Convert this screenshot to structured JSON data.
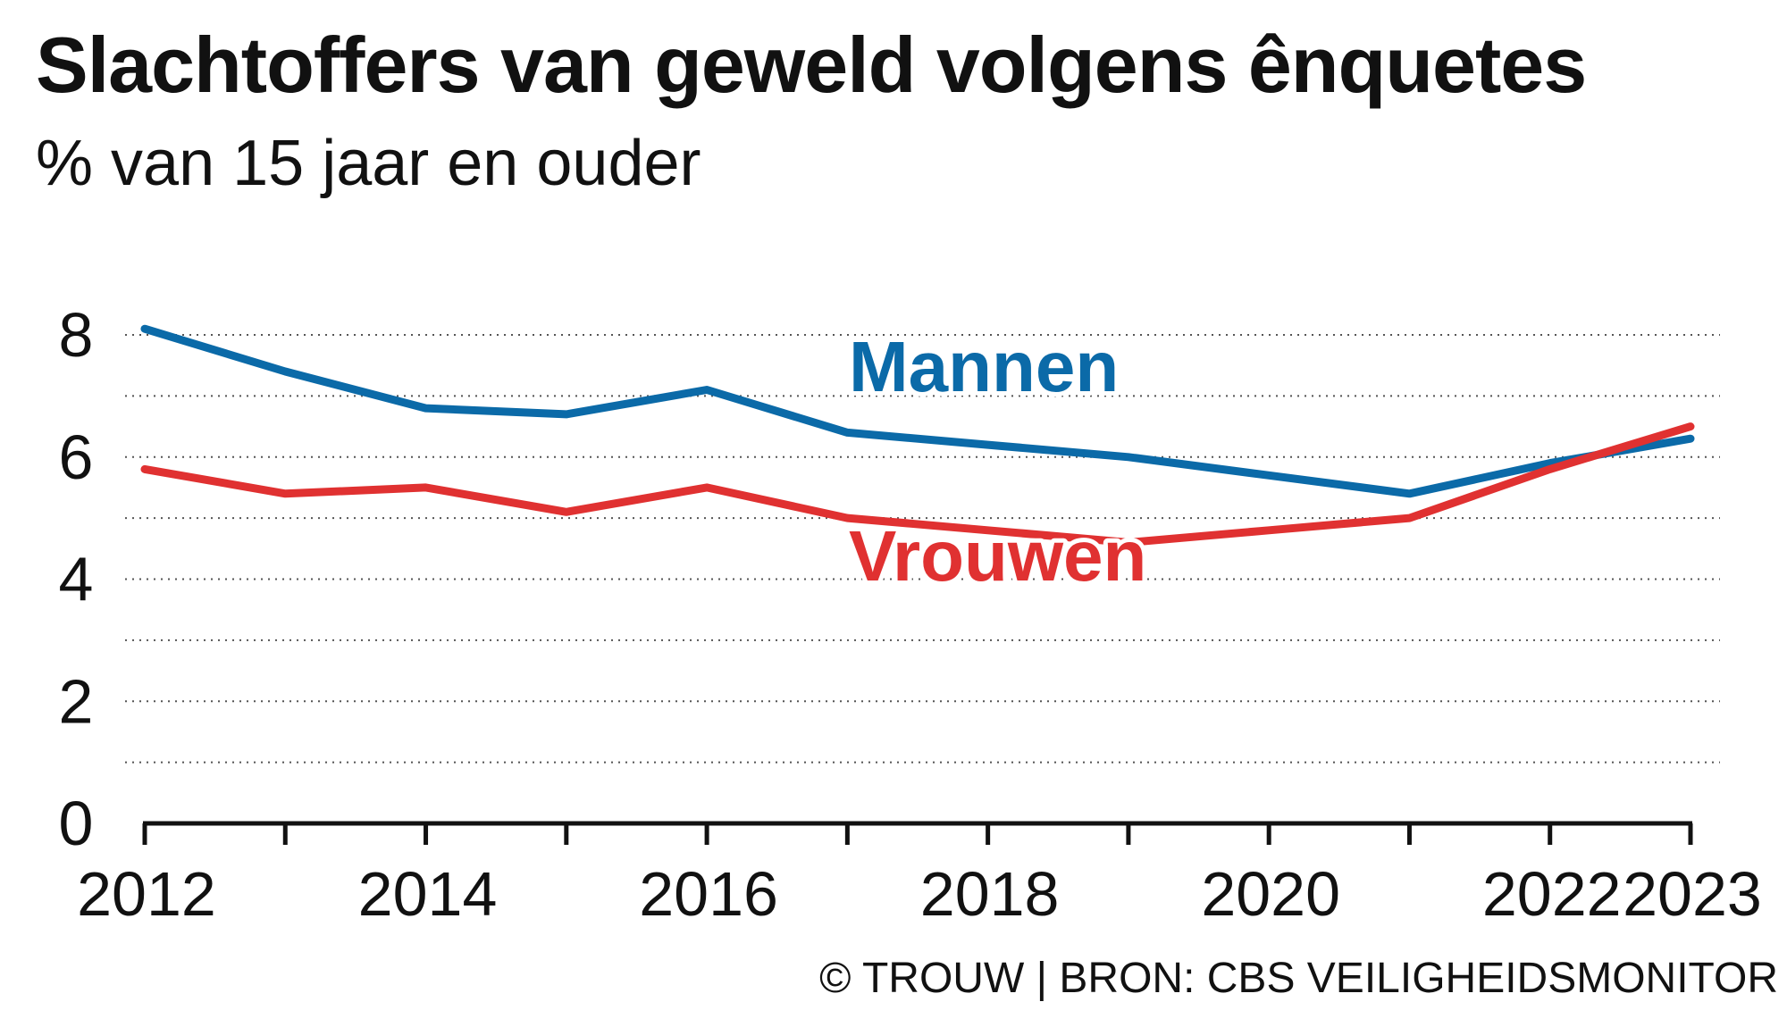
{
  "title": "Slachtoffers van geweld volgens ênquetes",
  "subtitle": "% van 15 jaar en ouder",
  "footer": "© TROUW | BRON: CBS VEILIGHEIDSMONITOR",
  "chart_data": {
    "type": "line",
    "x": [
      2012,
      2013,
      2014,
      2015,
      2016,
      2017,
      2018,
      2019,
      2020,
      2021,
      2022,
      2023
    ],
    "x_tick_labels": [
      "2012",
      "2014",
      "2016",
      "2018",
      "2020",
      "2022",
      "2023"
    ],
    "x_tick_values": [
      2012,
      2014,
      2016,
      2018,
      2020,
      2022,
      2023
    ],
    "y_tick_labels": [
      "0",
      "2",
      "4",
      "6",
      "8"
    ],
    "y_tick_values": [
      0,
      2,
      4,
      6,
      8
    ],
    "xlim": [
      2012,
      2023
    ],
    "ylim": [
      0,
      8
    ],
    "gridlines": [
      1,
      2,
      3,
      4,
      5,
      6,
      7,
      8
    ],
    "grid": true,
    "series": [
      {
        "name": "Mannen",
        "color": "#0b6aa8",
        "values": [
          8.1,
          7.4,
          6.8,
          6.7,
          7.1,
          6.4,
          6.2,
          6.0,
          5.7,
          5.4,
          5.9,
          6.3
        ]
      },
      {
        "name": "Vrouwen",
        "color": "#e03131",
        "values": [
          5.8,
          5.4,
          5.5,
          5.1,
          5.5,
          5.0,
          4.8,
          4.6,
          4.8,
          5.0,
          5.8,
          6.5
        ]
      }
    ]
  }
}
